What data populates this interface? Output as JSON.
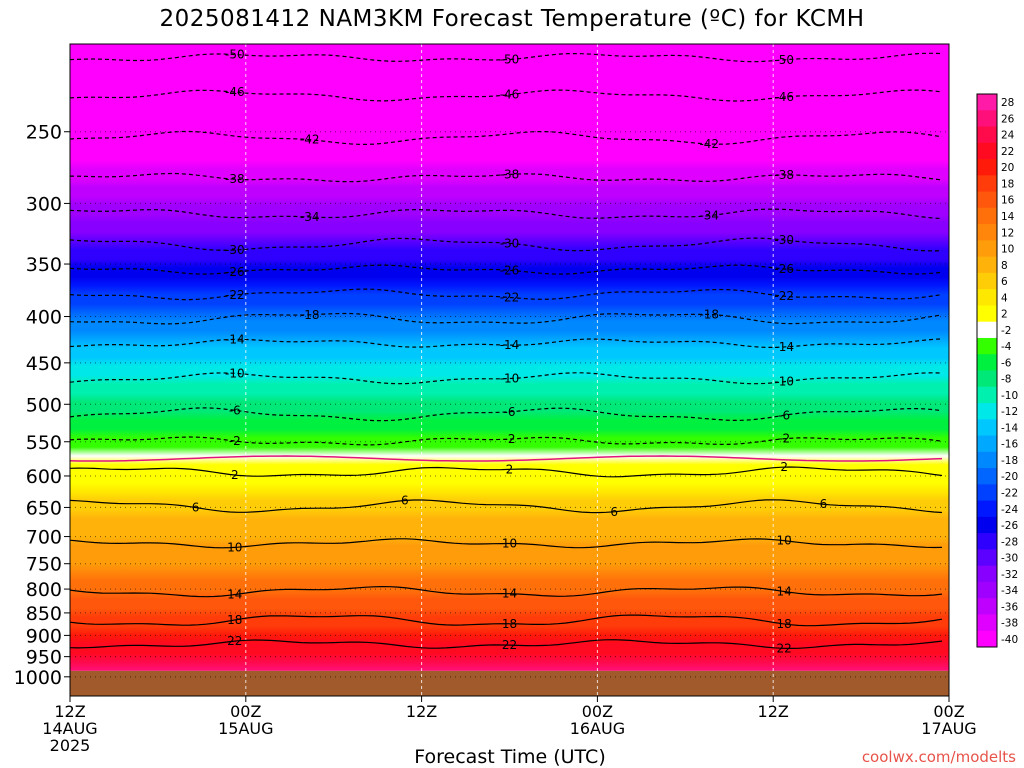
{
  "title": "2025081412 NAM3KM Forecast Temperature (ºC) for KCMH",
  "credit": "coolwx.com/modelts",
  "chart_data": {
    "type": "heatmap",
    "title": "2025081412 NAM3KM Forecast Temperature (ºC) for KCMH",
    "xlabel": "Forecast Time (UTC)",
    "ylabel": "",
    "x_range_hours": [
      0,
      60
    ],
    "y_scale": "log-pressure",
    "ylim_hpa": [
      1050,
      200
    ],
    "grid": true,
    "x_ticks": [
      {
        "hour": 0,
        "labels": [
          "12Z",
          "14AUG",
          "2025"
        ]
      },
      {
        "hour": 12,
        "labels": [
          "00Z",
          "15AUG"
        ]
      },
      {
        "hour": 24,
        "labels": [
          "12Z"
        ]
      },
      {
        "hour": 36,
        "labels": [
          "00Z",
          "16AUG"
        ]
      },
      {
        "hour": 48,
        "labels": [
          "12Z"
        ]
      },
      {
        "hour": 60,
        "labels": [
          "00Z",
          "17AUG"
        ]
      }
    ],
    "y_ticks": [
      "250",
      "300",
      "350",
      "400",
      "450",
      "500",
      "550",
      "600",
      "650",
      "700",
      "750",
      "800",
      "850",
      "900",
      "950",
      "1000"
    ],
    "ground_below_hpa": 985,
    "ground_color": "#a05a2c",
    "dotted_levels_hpa": [
      250,
      300,
      350,
      400,
      450,
      500,
      550,
      600,
      650,
      700,
      750,
      800,
      850,
      900,
      950,
      1000
    ],
    "approx_temperature_profile": {
      "pressure_hpa": [
        200,
        250,
        300,
        350,
        400,
        450,
        500,
        550,
        600,
        650,
        700,
        750,
        800,
        850,
        900,
        950,
        1000
      ],
      "temperature_c": [
        -52,
        -43,
        -35,
        -27,
        -19,
        -13,
        -8,
        -4,
        2,
        6,
        9,
        11,
        14,
        17,
        20,
        23,
        26
      ]
    },
    "contours": [
      {
        "value": -50,
        "pressure_hpa": 207,
        "labels": [
          "-50",
          "-50",
          "-50"
        ]
      },
      {
        "value": -46,
        "pressure_hpa": 228,
        "labels": [
          "-46",
          "-46",
          "-46"
        ]
      },
      {
        "value": -42,
        "pressure_hpa": 254,
        "labels": [
          "-42",
          "-42"
        ]
      },
      {
        "value": -38,
        "pressure_hpa": 281,
        "labels": [
          "-38",
          "-38",
          "-38"
        ]
      },
      {
        "value": -34,
        "pressure_hpa": 308,
        "labels": [
          "-34",
          "-34"
        ]
      },
      {
        "value": -30,
        "pressure_hpa": 333,
        "labels": [
          "-30",
          "-30",
          "-30"
        ]
      },
      {
        "value": -26,
        "pressure_hpa": 355,
        "labels": [
          "-26",
          "-26",
          "-26"
        ]
      },
      {
        "value": -22,
        "pressure_hpa": 378,
        "labels": [
          "-22",
          "-22",
          "-22"
        ]
      },
      {
        "value": -18,
        "pressure_hpa": 402,
        "labels": [
          "-18",
          "-18"
        ]
      },
      {
        "value": -14,
        "pressure_hpa": 428,
        "labels": [
          "-14",
          "-14",
          "-14"
        ]
      },
      {
        "value": -10,
        "pressure_hpa": 468,
        "labels": [
          "-10",
          "-10",
          "-10"
        ]
      },
      {
        "value": -6,
        "pressure_hpa": 513,
        "labels": [
          "-6",
          "-6",
          "-6"
        ]
      },
      {
        "value": -2,
        "pressure_hpa": 549,
        "labels": [
          "-2",
          "-2",
          "-2"
        ]
      },
      {
        "value": 2,
        "pressure_hpa": 594,
        "labels": [
          "2",
          "2",
          "2"
        ]
      },
      {
        "value": 6,
        "pressure_hpa": 648,
        "labels": [
          "6",
          "6",
          "6",
          "6"
        ]
      },
      {
        "value": 10,
        "pressure_hpa": 712,
        "labels": [
          "10",
          "10",
          "10"
        ]
      },
      {
        "value": 14,
        "pressure_hpa": 805,
        "labels": [
          "14",
          "14",
          "14"
        ]
      },
      {
        "value": 18,
        "pressure_hpa": 866,
        "labels": [
          "18",
          "18",
          "18"
        ]
      },
      {
        "value": 22,
        "pressure_hpa": 920,
        "labels": [
          "22",
          "22",
          "22"
        ]
      }
    ],
    "freezing_line_color": "#e0147c",
    "colorbar": {
      "labels": [
        "28",
        "26",
        "24",
        "22",
        "20",
        "18",
        "16",
        "14",
        "12",
        "10",
        "8",
        "6",
        "4",
        "2",
        "-2",
        "-4",
        "-6",
        "-8",
        "-10",
        "-12",
        "-14",
        "-16",
        "-18",
        "-20",
        "-22",
        "-24",
        "-26",
        "-28",
        "-30",
        "-32",
        "-34",
        "-36",
        "-38",
        "-40"
      ],
      "colors": [
        "#ff1ba8",
        "#ff0f7a",
        "#ff0a4a",
        "#ff0a20",
        "#ff1a0a",
        "#ff3c0a",
        "#ff580c",
        "#ff700a",
        "#ff860a",
        "#ff9c0a",
        "#ffb30a",
        "#ffcc08",
        "#ffe800",
        "#ffff00",
        "#ffffff",
        "#33ff00",
        "#00f040",
        "#00e878",
        "#00f0b0",
        "#00e8e8",
        "#00c8ff",
        "#00a8ff",
        "#0088ff",
        "#0066ff",
        "#0040ff",
        "#0018ff",
        "#0000ee",
        "#3000ff",
        "#5c00ff",
        "#8800ff",
        "#a000ff",
        "#c000ff",
        "#e000ff",
        "#ff00ff"
      ]
    }
  }
}
